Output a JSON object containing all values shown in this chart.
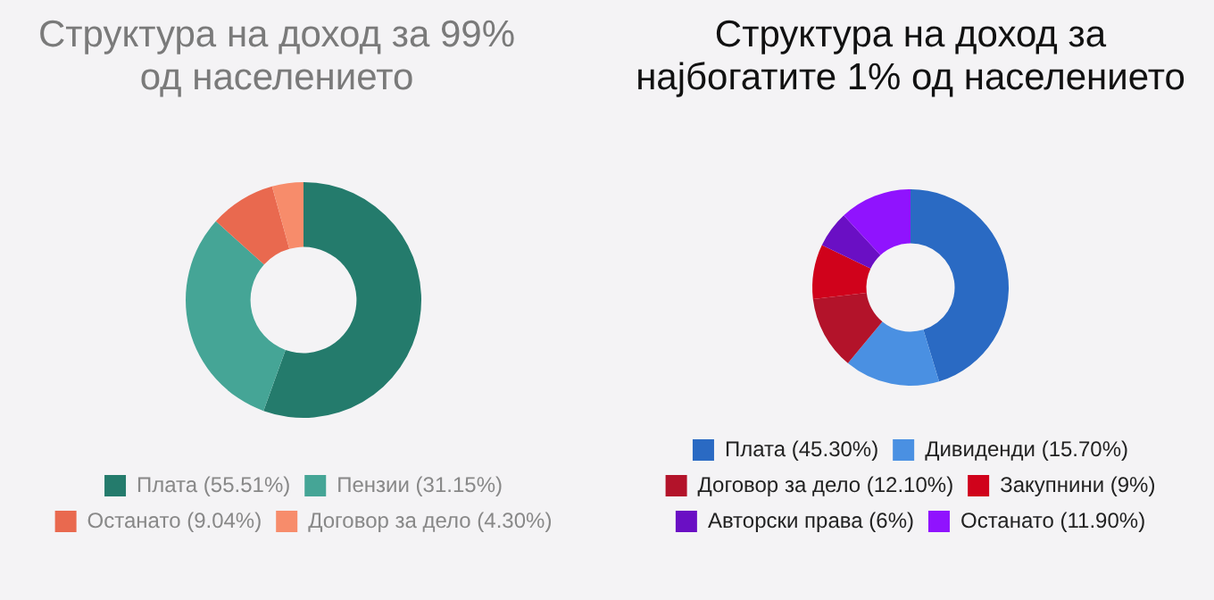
{
  "chart_data": [
    {
      "type": "donut",
      "title": "Структура на доход за 99% од населението",
      "categories": [
        "Плата (55.51%)",
        "Пензии (31.15%)",
        "Останато (9.04%)",
        "Договор за дело (4.30%)"
      ],
      "values": [
        55.51,
        31.15,
        9.04,
        4.3
      ],
      "colors": [
        "#247b6c",
        "#45a596",
        "#e9694f",
        "#f78c6b"
      ],
      "legend": "bottom"
    },
    {
      "type": "donut",
      "title": "Структура на доход за најбогатите 1% од населението",
      "categories": [
        "Плата (45.30%)",
        "Дивиденди (15.70%)",
        "Договор за дело (12.10%)",
        "Закупнини (9%)",
        "Авторски права (6%)",
        "Останато (11.90%)"
      ],
      "values": [
        45.3,
        15.7,
        12.1,
        9,
        6,
        11.9
      ],
      "colors": [
        "#2a6ac3",
        "#4a90e2",
        "#b3132a",
        "#d0021b",
        "#6a0fc4",
        "#9013fe"
      ],
      "legend": "bottom"
    }
  ]
}
